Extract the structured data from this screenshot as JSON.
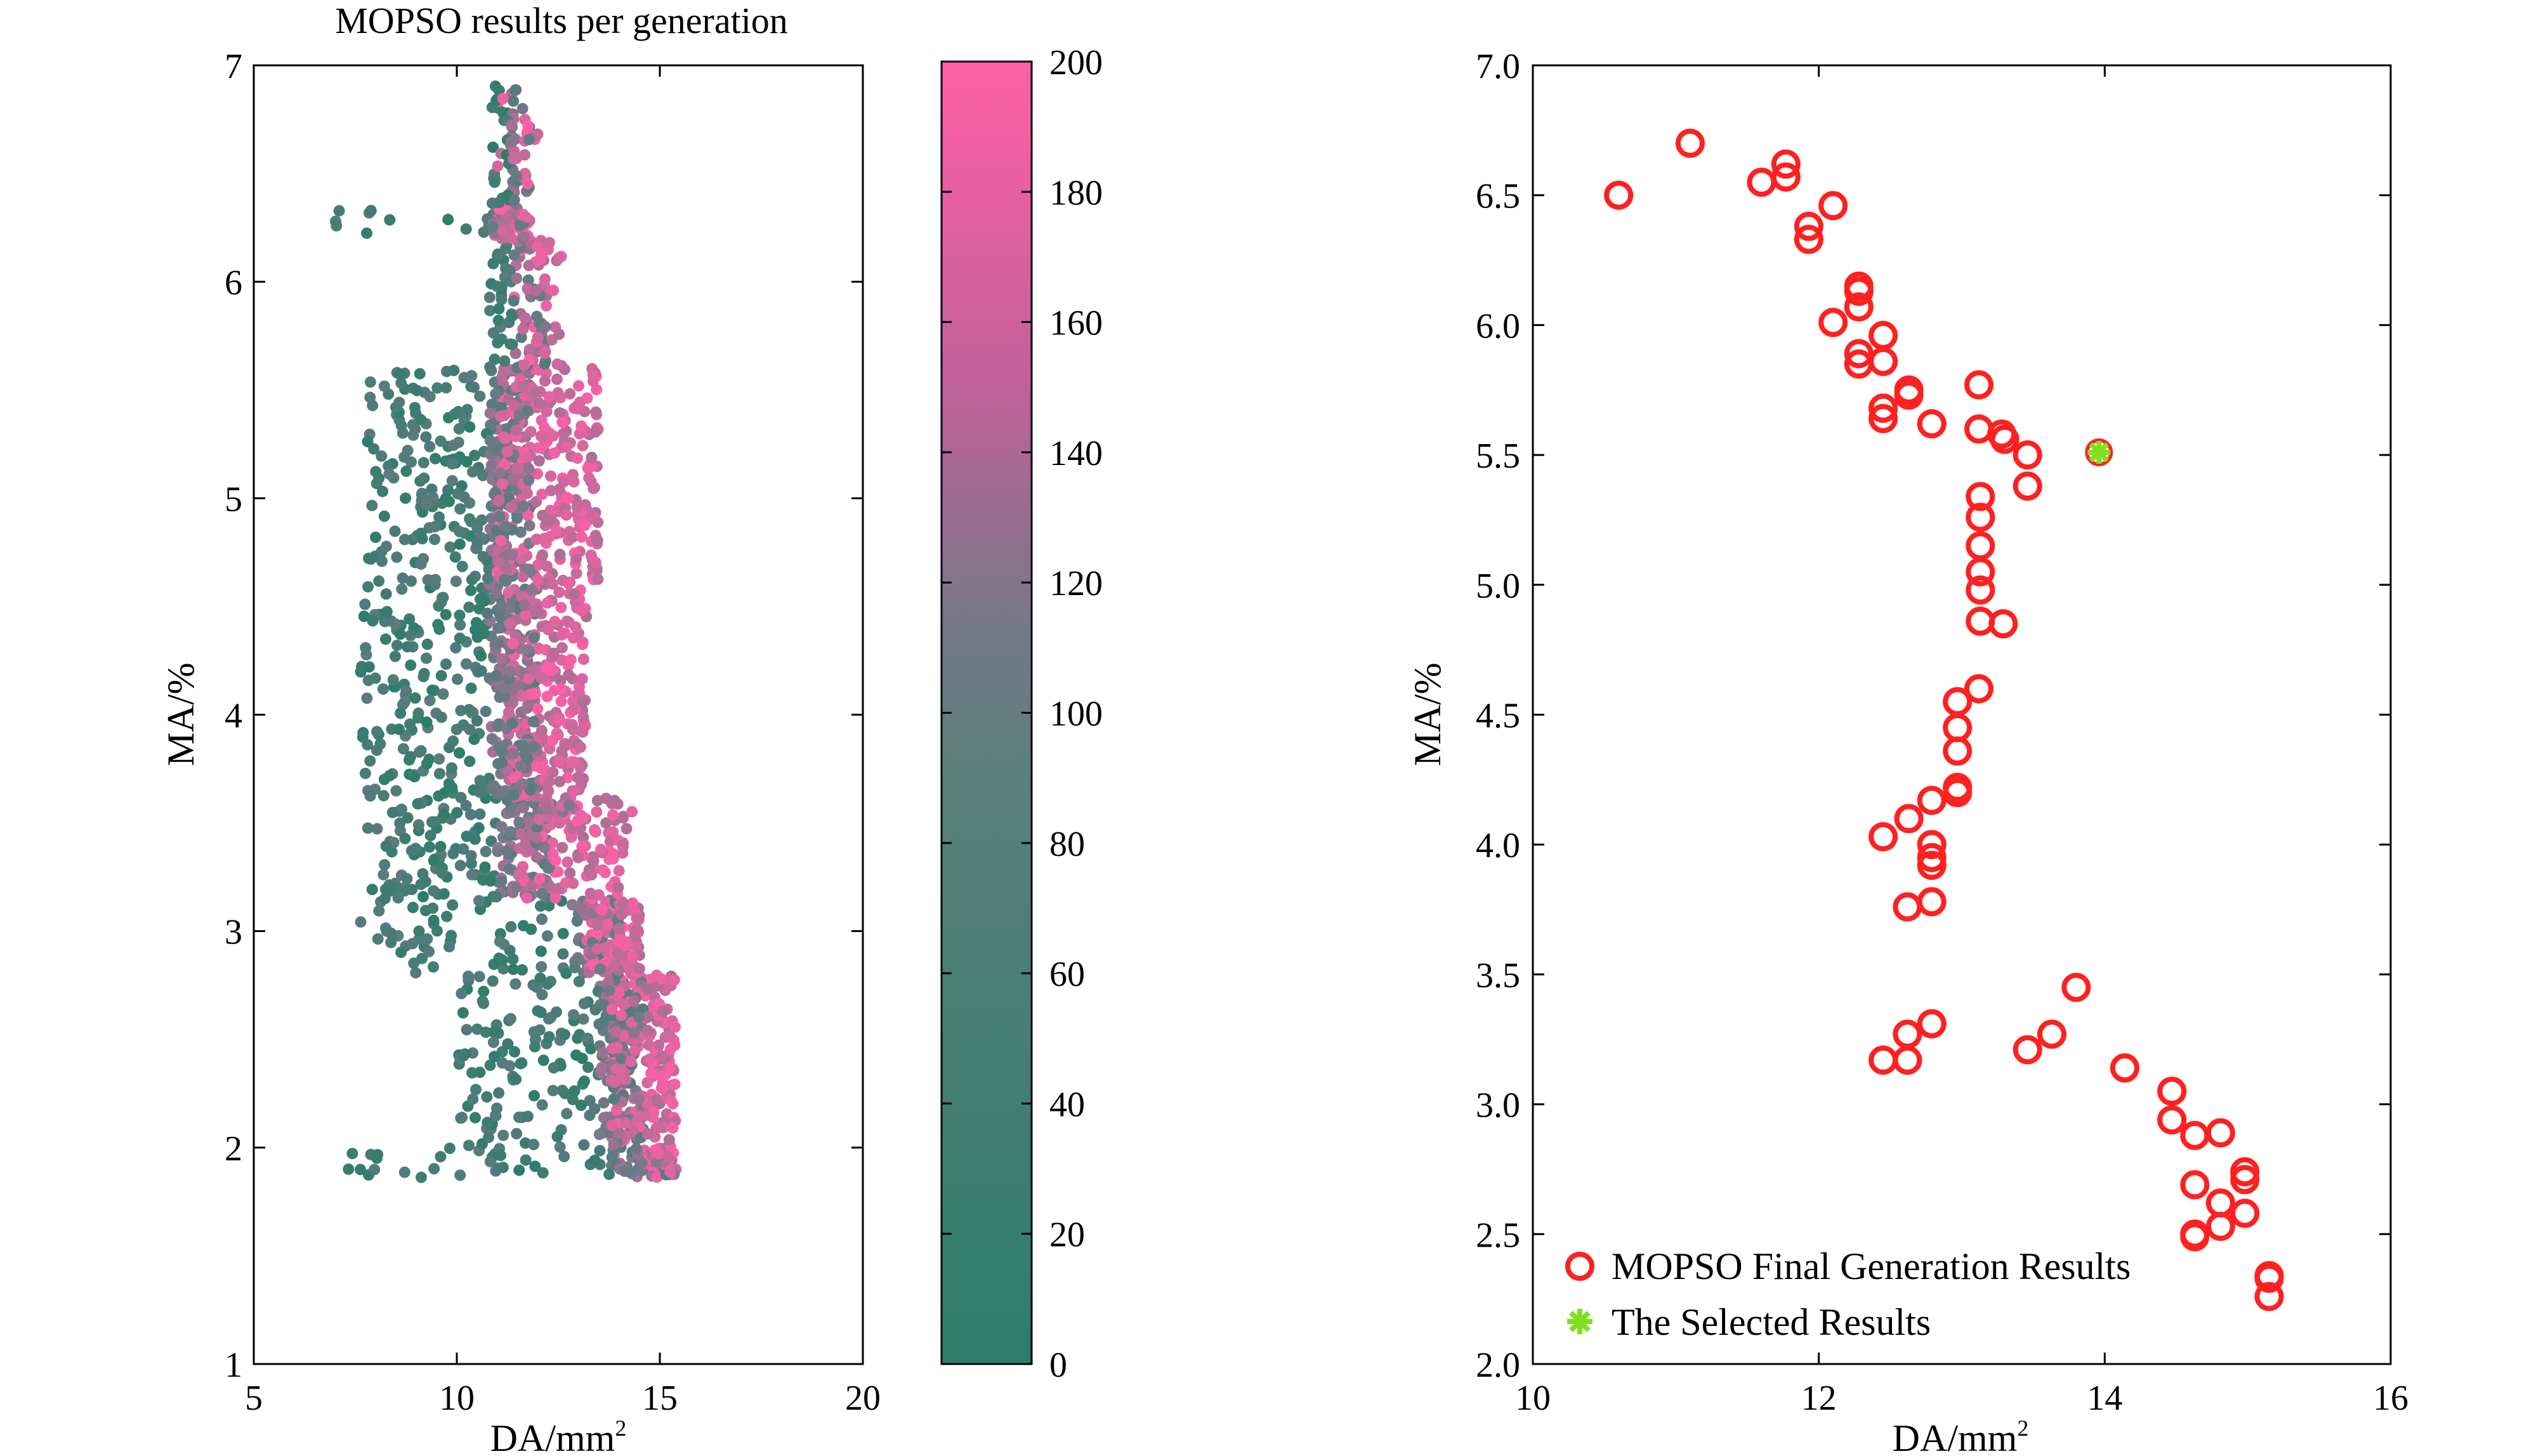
{
  "chart_data": [
    {
      "type": "scatter",
      "title": "MOPSO results per generation",
      "xlabel": "DA/mm",
      "xlabel_sup": "2",
      "ylabel": "MA/%",
      "xlim": [
        5,
        20
      ],
      "ylim": [
        1,
        7
      ],
      "xticks": [
        5,
        10,
        15,
        20
      ],
      "yticks": [
        1,
        2,
        3,
        4,
        5,
        6,
        7
      ],
      "grid": false,
      "color_by": "generation",
      "colormap": {
        "low": "#2e7d6b",
        "mid": "#707a88",
        "high": "#ff5fa8"
      },
      "colorbar": {
        "range": [
          0,
          200
        ],
        "ticks": [
          0,
          20,
          40,
          60,
          80,
          100,
          120,
          140,
          160,
          180,
          200
        ]
      },
      "bands": [
        {
          "y": [
            1.86,
            2.0
          ],
          "x_green": [
            7.0,
            13.8
          ],
          "x_pink": [
            14.6,
            15.4
          ]
        },
        {
          "y": [
            2.0,
            2.8
          ],
          "x_green": [
            10.0,
            13.5
          ],
          "x_pink": [
            13.8,
            15.4
          ]
        },
        {
          "y": [
            2.8,
            3.15
          ],
          "x_green": [
            7.5,
            12.8
          ],
          "x_pink": [
            13.2,
            14.5
          ]
        },
        {
          "y": [
            3.15,
            3.5
          ],
          "x_green": [
            7.8,
            11.0
          ],
          "x_pink": [
            11.5,
            14.2
          ]
        },
        {
          "y": [
            3.5,
            3.62
          ],
          "x_green": [
            7.8,
            11.2
          ],
          "x_pink": [
            12.0,
            14.4
          ]
        },
        {
          "y": [
            3.62,
            4.6
          ],
          "x_green": [
            7.6,
            10.8
          ],
          "x_pink": [
            11.2,
            13.2
          ]
        },
        {
          "y": [
            4.6,
            5.6
          ],
          "x_green": [
            7.8,
            10.8
          ],
          "x_pink": [
            11.0,
            13.5
          ]
        },
        {
          "y": [
            5.6,
            6.2
          ],
          "x_green": [
            10.8,
            11.4
          ],
          "x_pink": [
            11.4,
            12.6
          ]
        },
        {
          "y": [
            6.2,
            6.35
          ],
          "x_green": [
            6.8,
            10.8
          ],
          "x_pink": [
            10.9,
            11.8
          ]
        },
        {
          "y": [
            6.35,
            6.95
          ],
          "x_green": [
            10.8,
            11.3
          ],
          "x_pink": [
            11.0,
            12.0
          ]
        }
      ]
    },
    {
      "type": "scatter",
      "title": "",
      "xlabel": "DA/mm",
      "xlabel_sup": "2",
      "ylabel": "MA/%",
      "xlim": [
        10,
        16
      ],
      "ylim": [
        2.0,
        7.0
      ],
      "xticks": [
        10,
        12,
        14,
        16
      ],
      "yticks": [
        "2.0",
        "2.5",
        "3.0",
        "3.5",
        "4.0",
        "4.5",
        "5.0",
        "5.5",
        "6.0",
        "6.5",
        "7.0"
      ],
      "grid": false,
      "legend_position": "bottom-left",
      "series": [
        {
          "name": "MOPSO Final Generation Results",
          "marker": "circle",
          "color": "#ff2020",
          "x": [
            10.6,
            11.1,
            11.6,
            11.77,
            11.77,
            11.93,
            11.93,
            12.1,
            12.1,
            12.28,
            12.28,
            12.28,
            12.28,
            12.28,
            12.45,
            12.45,
            12.45,
            12.45,
            12.45,
            12.63,
            12.63,
            12.79,
            13.12,
            13.12,
            13.28,
            13.3,
            13.46,
            13.46,
            13.13,
            13.13,
            13.13,
            13.13,
            13.13,
            13.13,
            13.29,
            13.12,
            12.97,
            12.97,
            12.97,
            12.97,
            12.97,
            12.79,
            12.79,
            12.79,
            12.79,
            12.79,
            12.63,
            12.45,
            12.62,
            12.79,
            12.45,
            12.62,
            12.62,
            12.79,
            13.46,
            13.63,
            13.8,
            14.14,
            14.47,
            14.47,
            14.63,
            14.81,
            14.63,
            14.81,
            14.98,
            14.98,
            14.98,
            14.63,
            14.81,
            14.63,
            15.15,
            15.15,
            15.15
          ],
          "y": [
            6.5,
            6.7,
            6.55,
            6.62,
            6.57,
            6.38,
            6.33,
            6.46,
            6.01,
            6.15,
            6.13,
            6.07,
            5.89,
            5.85,
            5.96,
            5.86,
            5.68,
            5.64,
            5.68,
            5.75,
            5.73,
            5.62,
            5.77,
            5.6,
            5.58,
            5.56,
            5.5,
            5.38,
            5.34,
            5.26,
            5.15,
            5.05,
            4.98,
            4.86,
            4.85,
            4.6,
            4.55,
            4.45,
            4.36,
            4.22,
            4.2,
            4.17,
            4.0,
            3.95,
            3.92,
            3.78,
            4.1,
            4.03,
            3.76,
            3.31,
            3.17,
            3.17,
            3.27,
            3.31,
            3.21,
            3.27,
            3.45,
            3.14,
            3.05,
            2.94,
            2.88,
            2.89,
            2.69,
            2.62,
            2.74,
            2.71,
            2.58,
            2.49,
            2.53,
            2.5,
            2.34,
            2.33,
            2.26
          ]
        },
        {
          "name": "The Selected Results",
          "marker": "asterisk",
          "color": "#80e020",
          "x": [
            13.96
          ],
          "y": [
            5.51
          ]
        }
      ]
    }
  ]
}
